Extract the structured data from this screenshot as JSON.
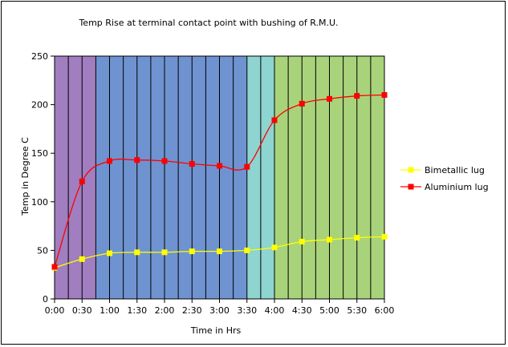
{
  "chart_data": {
    "type": "line",
    "title": "Temp Rise at terminal contact point with bushing of R.M.U.",
    "xlabel": "Time in Hrs",
    "ylabel": "Temp in Degree C",
    "ylim": [
      0,
      250
    ],
    "yticks": [
      0,
      50,
      100,
      150,
      200,
      250
    ],
    "categories": [
      "0:00",
      "0:30",
      "1:00",
      "1:30",
      "2:00",
      "2:30",
      "3:00",
      "3:30",
      "4:00",
      "4:30",
      "5:00",
      "5:30",
      "6:00"
    ],
    "series": [
      {
        "name": "Bimetallic lug",
        "color": "#FFFF00",
        "marker": "square",
        "x": [
          0,
          0.5,
          1,
          1.5,
          2,
          2.5,
          3,
          3.5,
          4,
          4.5,
          5,
          5.5,
          6
        ],
        "values": [
          32,
          41,
          47,
          48,
          48,
          49,
          49,
          50,
          53,
          59,
          61,
          63,
          64
        ]
      },
      {
        "name": "Aluminium lug",
        "color": "#FF0000",
        "marker": "square",
        "x": [
          0,
          0.5,
          1,
          1.5,
          2,
          2.5,
          3,
          3.5,
          4,
          4.5,
          5,
          5.5,
          6
        ],
        "values": [
          33,
          121,
          142,
          143,
          142,
          139,
          137,
          136,
          184,
          201,
          206,
          209,
          210
        ]
      }
    ],
    "background_bands": [
      {
        "from": 0,
        "to": 0.75,
        "color": "#A07EC0"
      },
      {
        "from": 0.75,
        "to": 3.5,
        "color": "#6F93D0"
      },
      {
        "from": 3.5,
        "to": 4.0,
        "color": "#8ED4D0"
      },
      {
        "from": 4.0,
        "to": 6.0,
        "color": "#A9D37A"
      }
    ],
    "vertical_grid_step_hrs": 0.25,
    "legend_position": "right"
  }
}
